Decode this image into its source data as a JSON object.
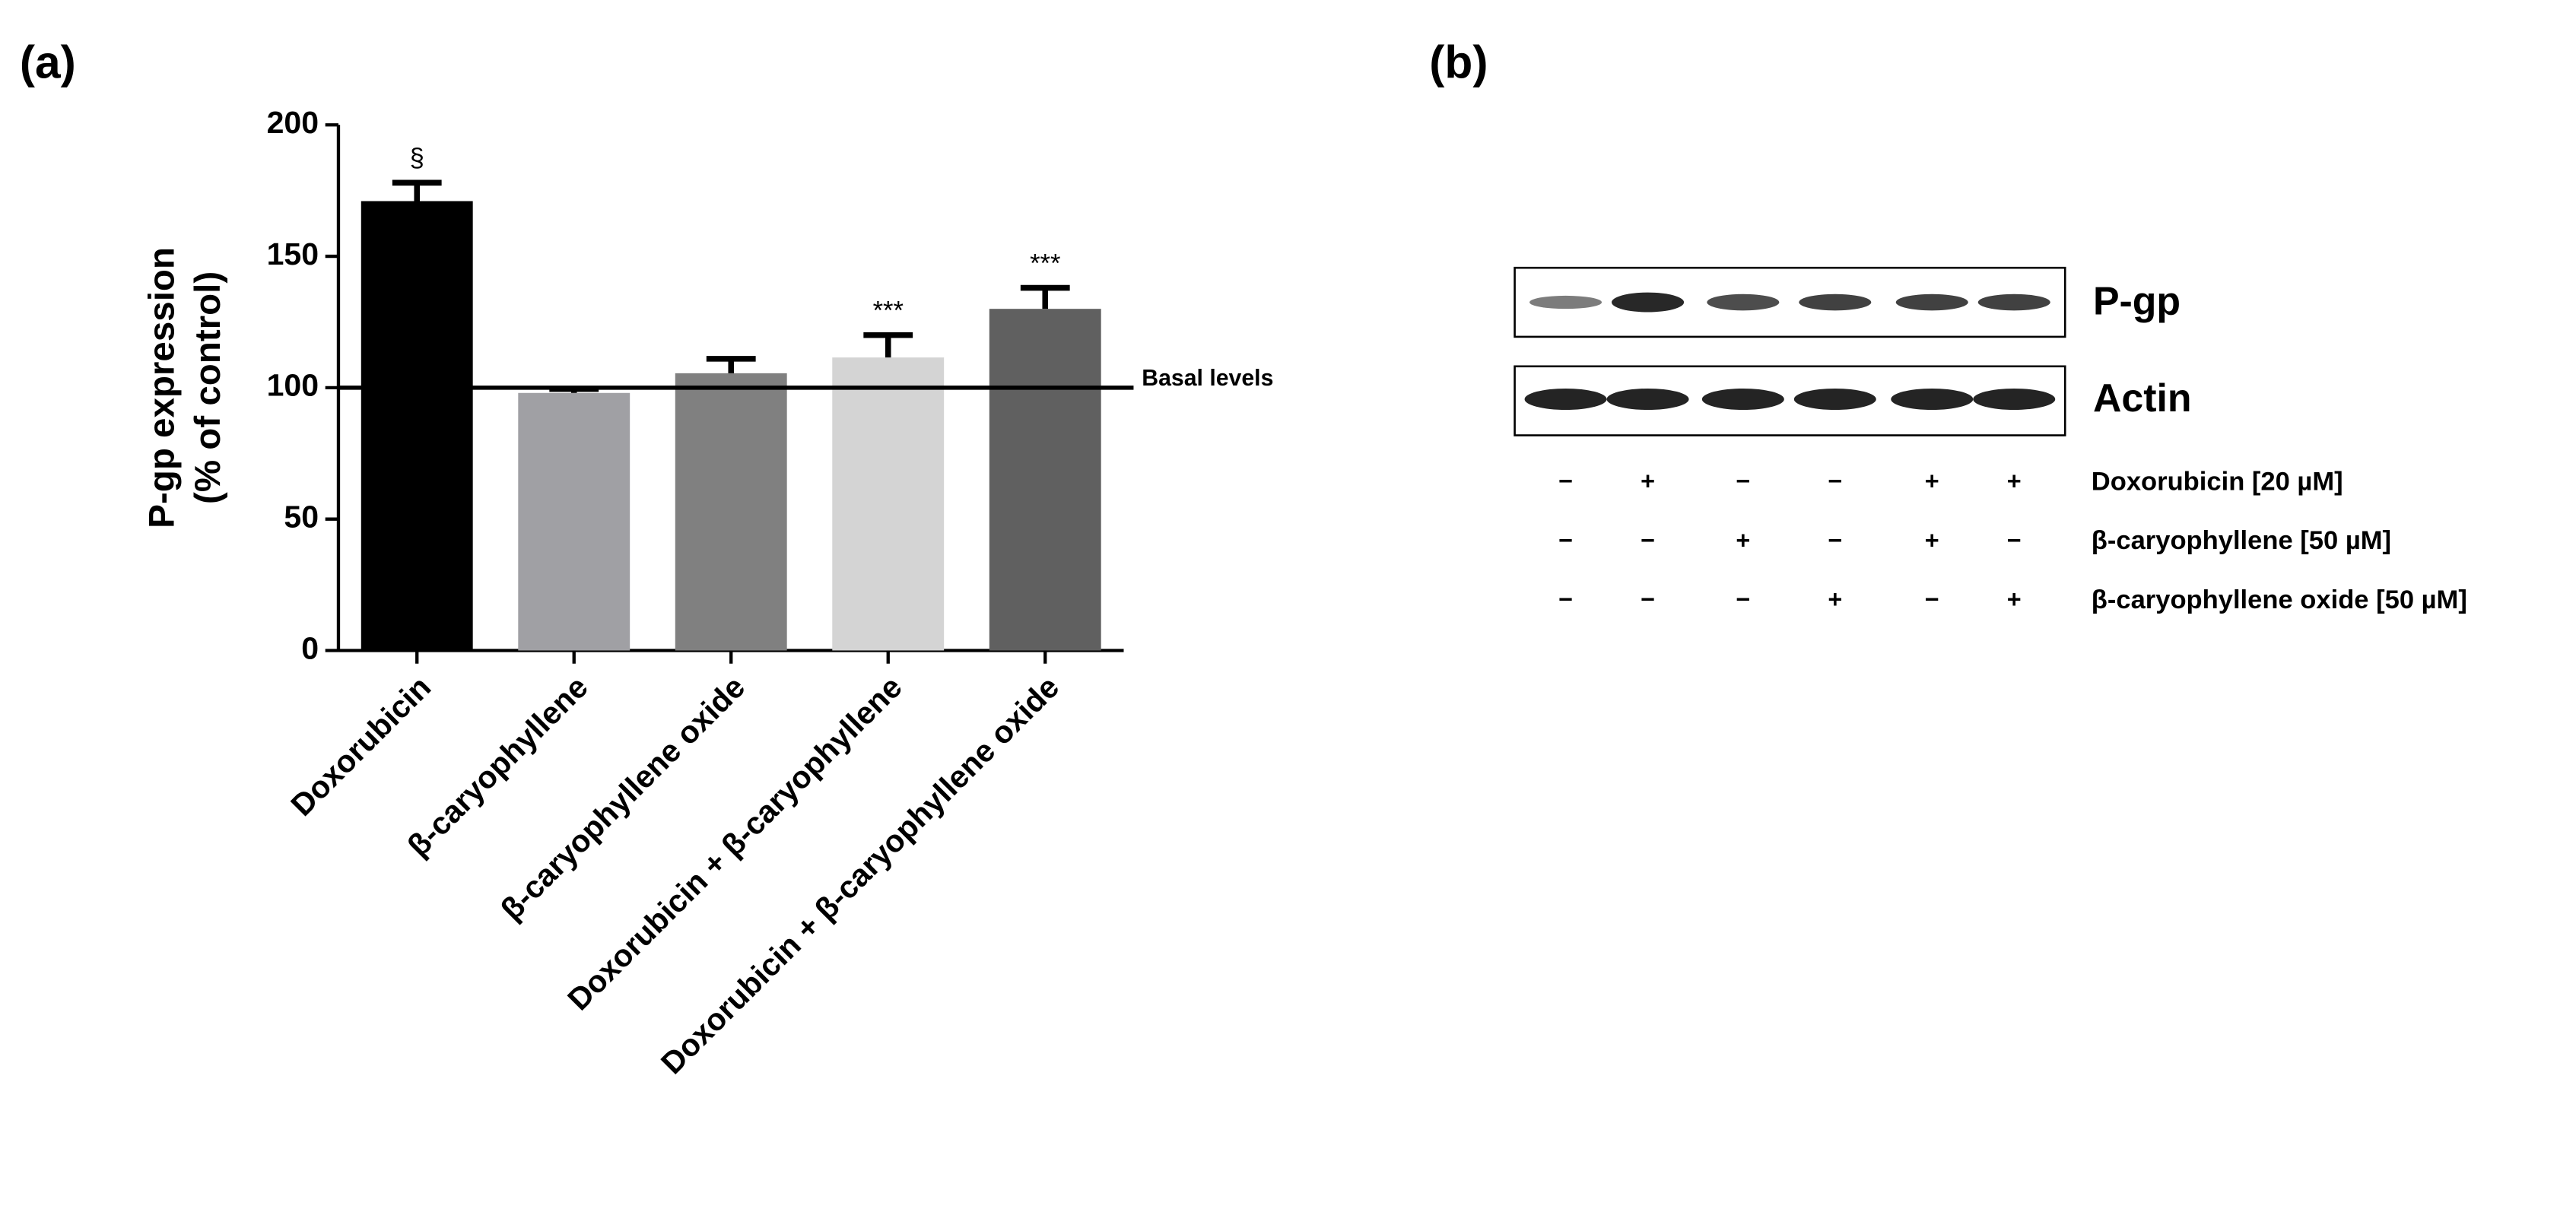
{
  "panel_labels": [
    "(a)",
    "(b)"
  ],
  "chart_data": {
    "type": "bar",
    "ylabel": [
      "P-gp expression",
      "(% of control)"
    ],
    "categories": [
      "Doxorubicin",
      "β-caryophyllene",
      "β-caryophyllene oxide",
      "Doxorubicin + β-caryophyllene",
      "Doxorubicin + β-caryophyllene oxide"
    ],
    "values": [
      171,
      98,
      105.5,
      111.5,
      130
    ],
    "errors": [
      7,
      1.5,
      5.5,
      8.5,
      8
    ],
    "colors": [
      "#000000",
      "#a0a0a4",
      "#808080",
      "#d4d4d4",
      "#606060"
    ],
    "value_annotations": [
      "§",
      null,
      null,
      "***",
      "***"
    ],
    "reference_line": {
      "value": 100,
      "label": "Basal levels"
    },
    "ylim": [
      0,
      200
    ],
    "yticks": [
      0,
      50,
      100,
      150,
      200
    ]
  },
  "blot": {
    "bands": [
      "P-gp",
      "Actin"
    ],
    "treatments": [
      {
        "label": "Doxorubicin [20 µM]",
        "signs": [
          "−",
          "+",
          "−",
          "−",
          "+",
          "+"
        ]
      },
      {
        "label": "β-caryophyllene [50 µM]",
        "signs": [
          "−",
          "−",
          "+",
          "−",
          "+",
          "−"
        ]
      },
      {
        "label": "β-caryophyllene oxide [50 µM]",
        "signs": [
          "−",
          "−",
          "−",
          "+",
          "−",
          "+"
        ]
      }
    ]
  }
}
